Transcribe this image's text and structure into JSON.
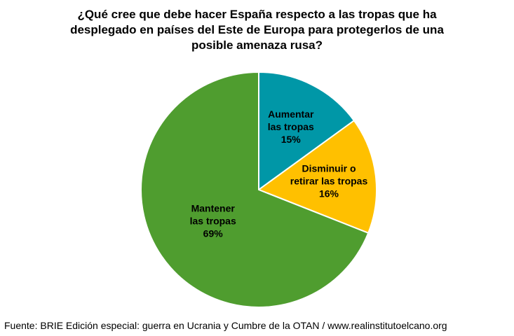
{
  "title_lines": [
    "¿Qué cree que debe hacer España respecto a las tropas que ha",
    "desplegado en países del Este de Europa para protegerlos de una",
    "posible amenaza rusa?"
  ],
  "source": "Fuente: BRIE Edición especial: guerra en Ucrania y Cumbre de la OTAN / www.realinstitutoelcano.org",
  "chart_data": {
    "type": "pie",
    "title": "¿Qué cree que debe hacer España respecto a las tropas que ha desplegado en países del Este de Europa para protegerlos de una posible amenaza rusa?",
    "slices": [
      {
        "label_lines": [
          "Aumentar",
          "las tropas"
        ],
        "value": 15,
        "value_label": "15%",
        "color": "#0097A7"
      },
      {
        "label_lines": [
          "Disminuir o",
          "retirar las tropas"
        ],
        "value": 16,
        "value_label": "16%",
        "color": "#FFC000"
      },
      {
        "label_lines": [
          "Mantener",
          "las tropas"
        ],
        "value": 69,
        "value_label": "69%",
        "color": "#4F9D2F"
      }
    ],
    "start_angle": "12 o'clock",
    "direction": "clockwise",
    "legend": "none",
    "slice_border_color": "#FFFFFF"
  }
}
